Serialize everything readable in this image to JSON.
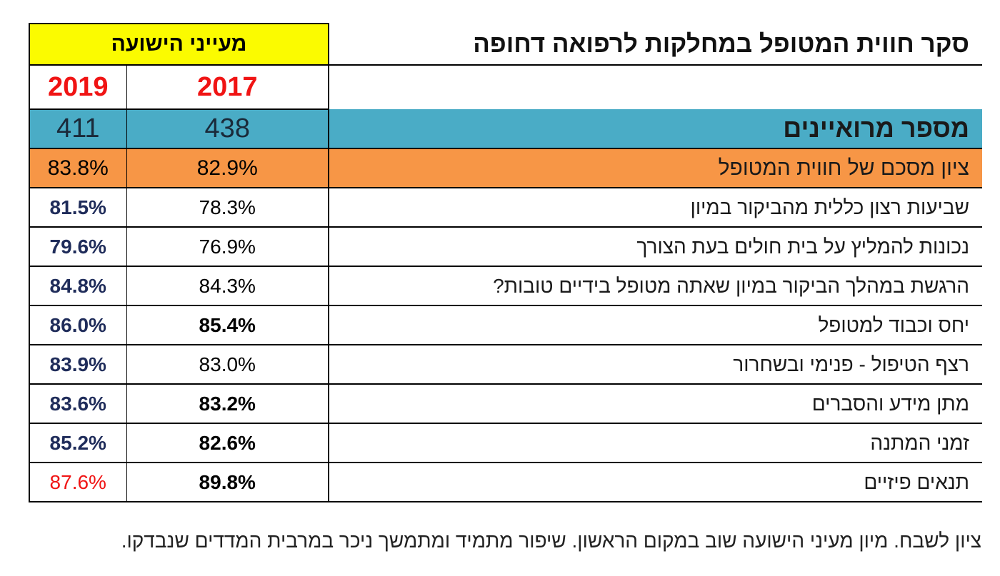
{
  "title": "סקר חווית המטופל במחלקות לרפואה דחופה",
  "hospital_header": "מעייני הישועה",
  "years": [
    "2019",
    "2017"
  ],
  "rows": [
    {
      "label": "מספר מרואיינים",
      "v2019": "411",
      "v2017": "438"
    },
    {
      "label": "ציון  מסכם של חווית המטופל",
      "v2019": "83.8%",
      "v2017": "82.9%"
    },
    {
      "label": "שביעות רצון כללית מהביקור במיון",
      "v2019": "81.5%",
      "v2017": "78.3%"
    },
    {
      "label": "נכונות להמליץ על בית חולים בעת הצורך",
      "v2019": "79.6%",
      "v2017": "76.9%"
    },
    {
      "label": "הרגשת במהלך הביקור במיון שאתה מטופל בידיים טובות?",
      "v2019": "84.8%",
      "v2017": "84.3%"
    },
    {
      "label": "יחס וכבוד למטופל",
      "v2019": "86.0%",
      "v2017": "85.4%"
    },
    {
      "label": "רצף הטיפול  - פנימי ובשחרור",
      "v2019": "83.9%",
      "v2017": "83.0%"
    },
    {
      "label": "מתן מידע והסברים",
      "v2019": "83.6%",
      "v2017": "83.2%"
    },
    {
      "label": "זמני המתנה",
      "v2019": "85.2%",
      "v2017": "82.6%"
    },
    {
      "label": "תנאים פיזיים",
      "v2019": "87.6%",
      "v2017": "89.8%"
    }
  ],
  "footnote": "ציון לשבח. מיון מעיני הישועה שוב במקום הראשון. שיפור מתמיד ומתמשך ניכר במרבית המדדים שנבדקו.",
  "colors": {
    "header_yellow": "#fbfb00",
    "respondents_blue": "#4aacc6",
    "summary_orange": "#f79646",
    "year_red": "#f01414",
    "value_navy": "#1f2c5a"
  }
}
